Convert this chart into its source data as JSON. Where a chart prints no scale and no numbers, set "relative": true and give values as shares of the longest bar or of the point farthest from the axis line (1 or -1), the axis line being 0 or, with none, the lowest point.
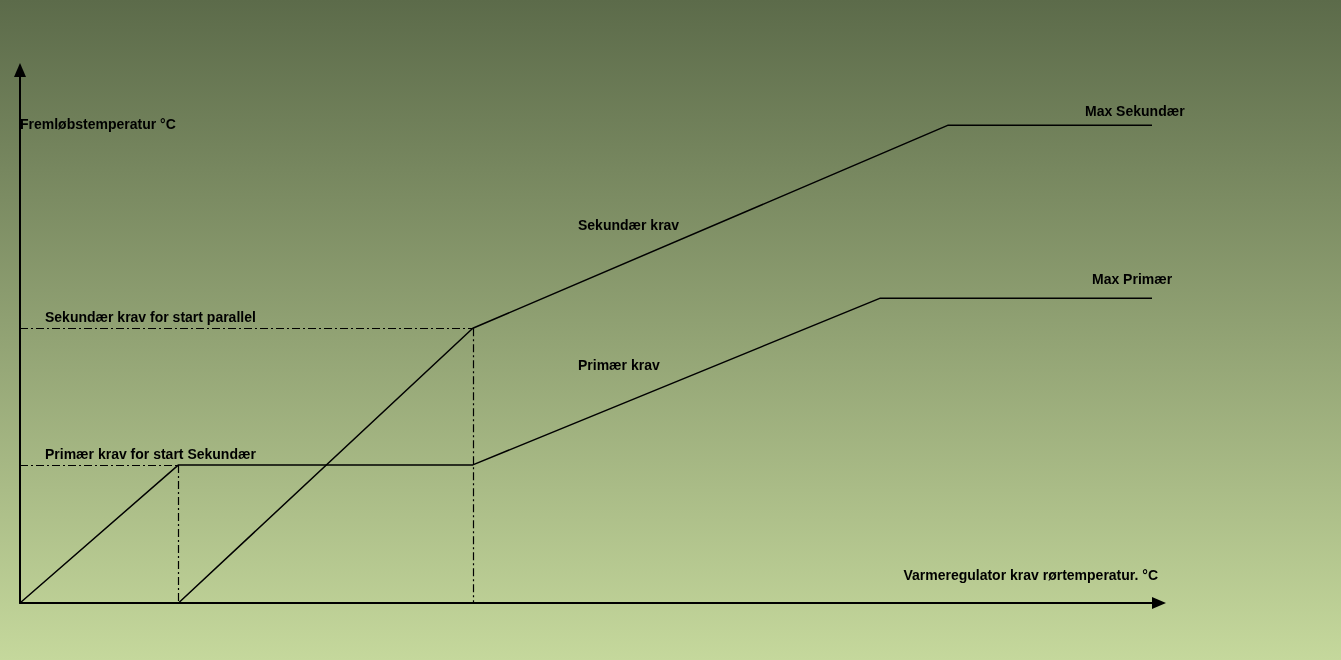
{
  "chart_data": {
    "type": "line",
    "relative": true,
    "xlabel": "Varmeregulator krav rørtemperatur. °C",
    "ylabel": "Fremløbstemperatur °C",
    "categories": [
      null,
      null,
      null,
      null,
      null,
      null,
      null,
      null,
      null,
      null,
      null,
      null,
      null,
      null,
      null,
      null,
      null,
      null,
      null,
      null,
      null,
      null,
      null,
      null,
      null,
      null,
      null,
      null,
      null,
      null,
      null,
      null,
      null,
      null,
      null,
      null,
      null,
      null,
      null,
      null,
      null,
      null,
      null,
      null,
      null,
      null,
      null,
      null,
      null,
      null,
      null
    ],
    "series": [
      {
        "color": "#000000",
        "values": [
          0,
          null,
          null,
          null,
          null,
          null,
          null,
          0.289,
          null,
          null,
          null,
          null,
          null,
          null,
          null,
          null,
          null,
          null,
          null,
          null,
          0.289,
          null,
          null,
          null,
          null,
          null,
          null,
          null,
          null,
          null,
          null,
          null,
          null,
          null,
          null,
          null,
          null,
          null,
          0.638,
          null,
          null,
          null,
          null,
          null,
          null,
          null,
          null,
          null,
          null,
          null,
          0.638
        ]
      },
      {
        "color": "#000000",
        "values": [
          null,
          null,
          null,
          null,
          null,
          null,
          null,
          0,
          null,
          null,
          null,
          null,
          null,
          null,
          null,
          null,
          null,
          null,
          null,
          null,
          0.575,
          null,
          null,
          null,
          null,
          null,
          null,
          null,
          null,
          null,
          null,
          null,
          null,
          null,
          null,
          null,
          null,
          null,
          null,
          null,
          null,
          1,
          null,
          null,
          null,
          null,
          null,
          null,
          null,
          null,
          1
        ]
      }
    ],
    "ref_lines": [
      {
        "axis": "y",
        "value": 0.289,
        "label": "Primær krav for start Sekundær",
        "line_style": "dashdot",
        "color": "#000000"
      },
      {
        "axis": "y",
        "value": 0.575,
        "label": "Sekundær krav for start parallel",
        "line_style": "dashdot",
        "color": "#000000"
      }
    ],
    "annotations": [
      "Sekundær krav",
      "Primær krav",
      "Max Sekundær",
      "Max Primær"
    ],
    "grid": false,
    "marker": "none",
    "line_style": "solid"
  }
}
